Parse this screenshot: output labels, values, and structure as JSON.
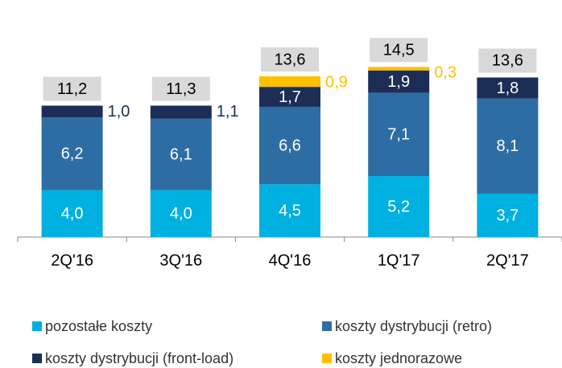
{
  "chart_data": {
    "type": "stacked_bar",
    "categories": [
      "2Q'16",
      "3Q'16",
      "4Q'16",
      "1Q'17",
      "2Q'17"
    ],
    "series": [
      {
        "name": "pozostałe koszty",
        "color": "#00b0e0",
        "values": [
          4.0,
          4.0,
          4.5,
          5.2,
          3.7
        ],
        "value_labels": [
          "4,0",
          "4,0",
          "4,5",
          "5,2",
          "3,7"
        ]
      },
      {
        "name": "koszty dystrybucji (retro)",
        "color": "#2e6da4",
        "values": [
          6.2,
          6.1,
          6.6,
          7.1,
          8.1
        ],
        "value_labels": [
          "6,2",
          "6,1",
          "6,6",
          "7,1",
          "8,1"
        ]
      },
      {
        "name": "koszty dystrybucji (front-load)",
        "color": "#1c2e55",
        "values": [
          1.0,
          1.1,
          1.7,
          1.9,
          1.8
        ],
        "value_labels": [
          "1,0",
          "1,1",
          "1,7",
          "1,9",
          "1,8"
        ]
      },
      {
        "name": "koszty jednorazowe",
        "color": "#ffc000",
        "values": [
          null,
          null,
          0.9,
          0.3,
          null
        ],
        "value_labels": [
          null,
          null,
          "0,9",
          "0,3",
          null
        ]
      }
    ],
    "totals": [
      11.2,
      11.3,
      13.6,
      14.5,
      13.6
    ],
    "total_labels": [
      "11,2",
      "11,3",
      "13,6",
      "14,5",
      "13,6"
    ]
  }
}
